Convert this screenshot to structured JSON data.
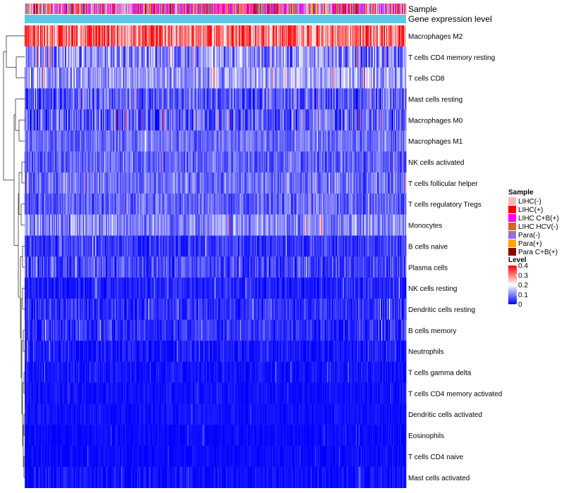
{
  "chart_data": {
    "type": "heatmap",
    "title": "",
    "annotation_labels": [
      "Sample",
      "Gene expression level"
    ],
    "rows": [
      {
        "label": "Macrophages M2",
        "mean": 0.3,
        "spread": 0.14
      },
      {
        "label": "T cells CD4 memory resting",
        "mean": 0.1,
        "spread": 0.1
      },
      {
        "label": "T cells CD8",
        "mean": 0.12,
        "spread": 0.09
      },
      {
        "label": "Mast cells resting",
        "mean": 0.06,
        "spread": 0.08
      },
      {
        "label": "Macrophages M0",
        "mean": 0.06,
        "spread": 0.1
      },
      {
        "label": "Macrophages M1",
        "mean": 0.08,
        "spread": 0.05
      },
      {
        "label": "NK cells activated",
        "mean": 0.07,
        "spread": 0.06
      },
      {
        "label": "T cells follicular helper",
        "mean": 0.08,
        "spread": 0.06
      },
      {
        "label": "T cells regulatory  Tregs",
        "mean": 0.07,
        "spread": 0.06
      },
      {
        "label": "Monocytes",
        "mean": 0.1,
        "spread": 0.08
      },
      {
        "label": "B cells naive",
        "mean": 0.04,
        "spread": 0.05
      },
      {
        "label": "Plasma cells",
        "mean": 0.05,
        "spread": 0.06
      },
      {
        "label": "NK cells resting",
        "mean": 0.02,
        "spread": 0.04
      },
      {
        "label": "Dendritic cells resting",
        "mean": 0.03,
        "spread": 0.05
      },
      {
        "label": "B cells memory",
        "mean": 0.03,
        "spread": 0.05
      },
      {
        "label": "Neutrophils",
        "mean": 0.01,
        "spread": 0.04
      },
      {
        "label": "T cells gamma delta",
        "mean": 0.01,
        "spread": 0.03
      },
      {
        "label": "T cells CD4 memory activated",
        "mean": 0.01,
        "spread": 0.02
      },
      {
        "label": "Dendritic cells activated",
        "mean": 0.01,
        "spread": 0.02
      },
      {
        "label": "Eosinophils",
        "mean": 0.005,
        "spread": 0.02
      },
      {
        "label": "T cells CD4 naive",
        "mean": 0.005,
        "spread": 0.02
      },
      {
        "label": "Mast cells activated",
        "mean": 0.01,
        "spread": 0.03
      }
    ],
    "n_samples": 540,
    "color_scale": {
      "min": 0,
      "max": 0.4,
      "colors": [
        "#0000ff",
        "#ffffff",
        "#ff0000"
      ]
    },
    "legend": {
      "sample": {
        "title": "Sample",
        "entries": [
          {
            "label": "LIHC(-)",
            "color": "#ffb6c1"
          },
          {
            "label": "LIHC(+)",
            "color": "#ff0000"
          },
          {
            "label": "LIHC C+B(+)",
            "color": "#ff00ff"
          },
          {
            "label": "LIHC HCV(-)",
            "color": "#d2691e"
          },
          {
            "label": "Para(-)",
            "color": "#9370db"
          },
          {
            "label": "Para(+)",
            "color": "#ffa500"
          },
          {
            "label": "Para C+B(+)",
            "color": "#8b0000"
          }
        ]
      },
      "level": {
        "title": "Level",
        "ticks": [
          "0.4",
          "0.3",
          "0.2",
          "0.1",
          "0"
        ]
      }
    },
    "expression_level_color": "#5cc8e8"
  }
}
